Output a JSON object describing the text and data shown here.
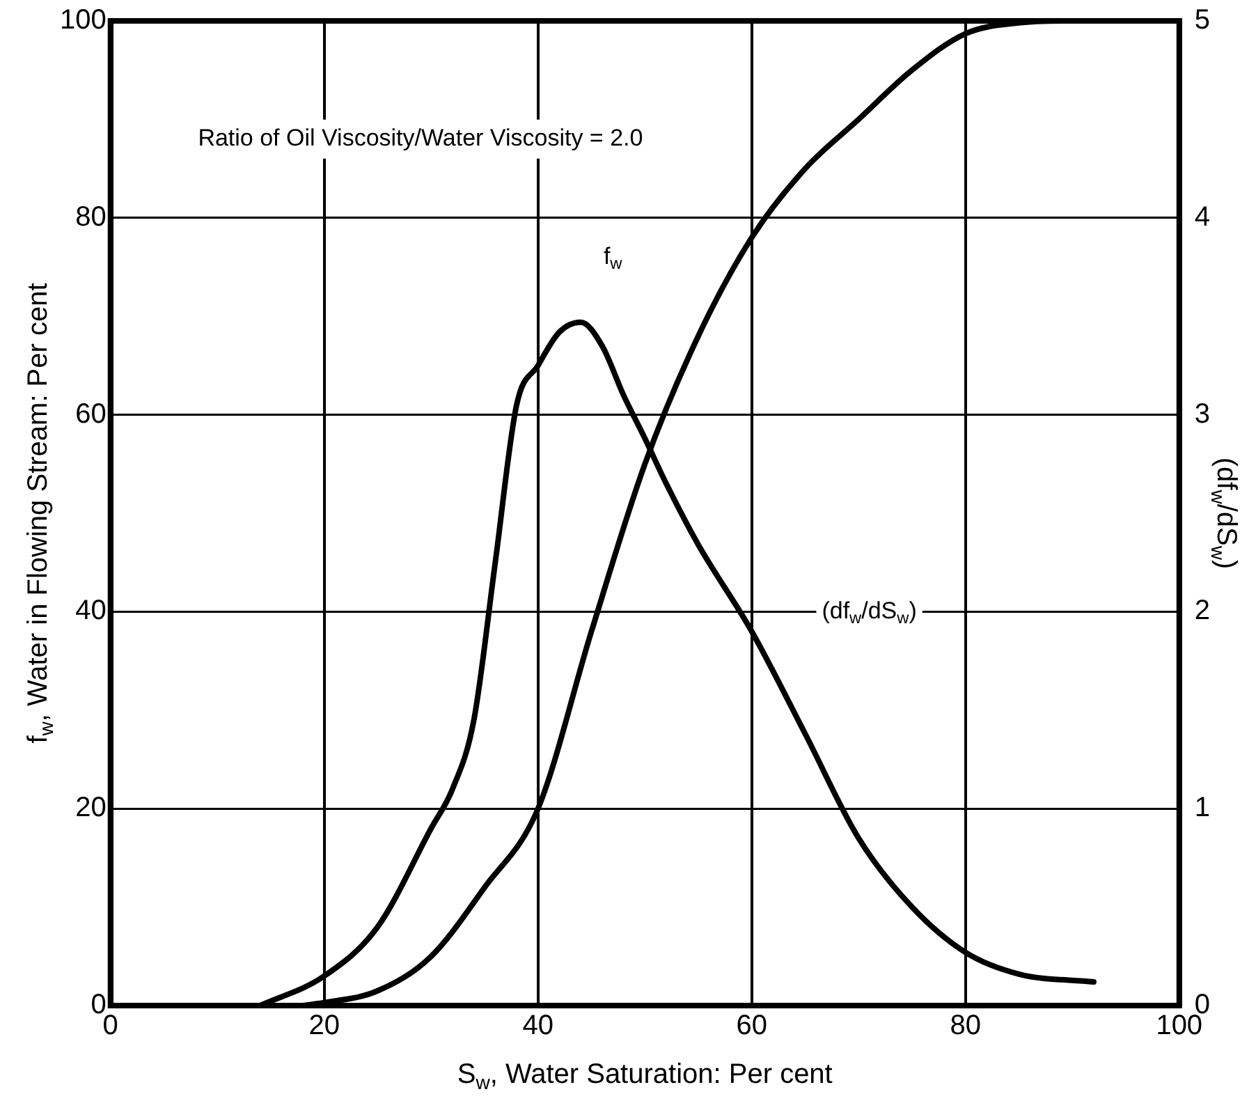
{
  "chart_data": {
    "type": "line",
    "xlabel": "S$_{w}$, Water Saturation: Per cent",
    "ylabel": "f$_{w}$, Water in Flowing Stream: Per cent",
    "y2label": "(df$_{w}$/dS$_{w}$)",
    "xlim": [
      0,
      100
    ],
    "xticks": [
      0,
      20,
      40,
      60,
      80,
      100
    ],
    "ylim": [
      0,
      100
    ],
    "yticks": [
      0,
      20,
      40,
      60,
      80,
      100
    ],
    "y2lim": [
      0,
      5
    ],
    "y2ticks": [
      0,
      1,
      2,
      3,
      4,
      5
    ],
    "grid": true,
    "legend": false,
    "marker": "none",
    "line_style": "solid",
    "series": [
      {
        "color": "#000000",
        "x": [
          18,
          20,
          25,
          30,
          35,
          40,
          45,
          50,
          55,
          60,
          65,
          70,
          75,
          80,
          85,
          90,
          100
        ],
        "values": [
          0,
          0.3,
          1.5,
          5,
          12,
          20,
          38,
          55,
          68,
          78,
          85,
          90,
          95,
          98.7,
          99.8,
          100,
          100
        ]
      },
      {
        "color": "#000000",
        "axis": "y2",
        "x": [
          14,
          20,
          25,
          30,
          32,
          34,
          36,
          38,
          40,
          42,
          44,
          46,
          48,
          50,
          52,
          55,
          60,
          65,
          70,
          75,
          80,
          85,
          92
        ],
        "values": [
          0,
          0.15,
          0.4,
          0.9,
          1.1,
          1.45,
          2.25,
          3.05,
          3.25,
          3.42,
          3.47,
          3.35,
          3.1,
          2.88,
          2.65,
          2.34,
          1.9,
          1.38,
          0.85,
          0.5,
          0.27,
          0.16,
          0.12
        ]
      }
    ],
    "annotations": [
      "Ratio of Oil Viscosity/Water Viscosity = 2.0",
      "f$_{w}$",
      "(df$_{w}$/dS$_{w}$)"
    ]
  }
}
